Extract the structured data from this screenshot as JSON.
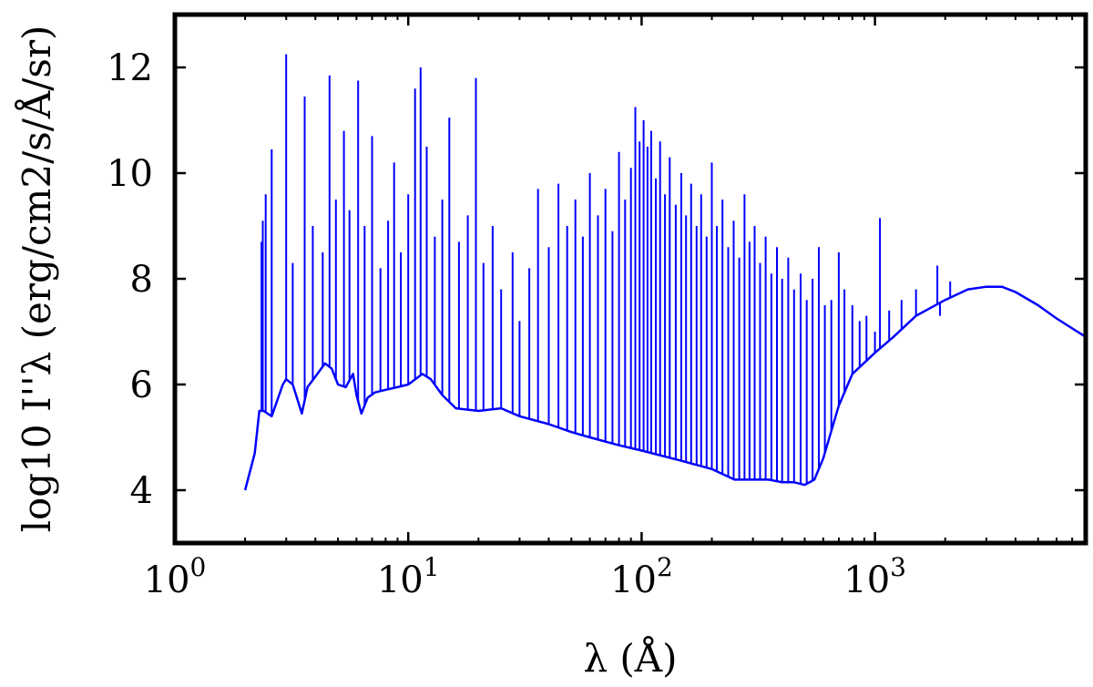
{
  "chart_data": {
    "type": "line",
    "xscale": "log",
    "xlim": [
      1,
      8000
    ],
    "ylim": [
      3,
      13
    ],
    "grid": false,
    "legend": "none",
    "color": "#0000ff",
    "xlabel": "λ (Å)",
    "ylabel": "log10 I''λ (erg/cm2/s/Å/sr)",
    "x_ticks": [
      {
        "base": "10",
        "exp": "0"
      },
      {
        "base": "10",
        "exp": "1"
      },
      {
        "base": "10",
        "exp": "2"
      },
      {
        "base": "10",
        "exp": "3"
      }
    ],
    "y_ticks": [
      "4",
      "6",
      "8",
      "10",
      "12"
    ],
    "continuum": {
      "x": [
        2.0,
        2.2,
        2.3,
        2.4,
        2.6,
        2.9,
        3.0,
        3.2,
        3.5,
        3.7,
        4.0,
        4.4,
        4.7,
        5.0,
        5.4,
        5.8,
        6.0,
        6.3,
        6.7,
        7.2,
        8.0,
        9.0,
        10.0,
        11.5,
        12.5,
        14.0,
        16.0,
        20.0,
        25.0,
        30.0,
        40.0,
        50.0,
        60.0,
        80.0,
        100.0,
        150.0,
        200.0,
        250.0,
        300.0,
        350.0,
        400.0,
        450.0,
        500.0,
        550.0,
        600.0,
        700.0,
        800.0,
        1000.0,
        1200.0,
        1500.0,
        2000.0,
        2500.0,
        3000.0,
        3500.0,
        4000.0,
        5000.0,
        6000.0,
        8000.0
      ],
      "y": [
        4.0,
        4.7,
        5.5,
        5.5,
        5.4,
        6.0,
        6.1,
        6.0,
        5.45,
        5.95,
        6.15,
        6.4,
        6.3,
        6.0,
        5.95,
        6.2,
        5.8,
        5.45,
        5.75,
        5.85,
        5.9,
        5.95,
        6.0,
        6.2,
        6.1,
        5.8,
        5.55,
        5.5,
        5.55,
        5.4,
        5.25,
        5.1,
        5.0,
        4.85,
        4.75,
        4.55,
        4.4,
        4.2,
        4.2,
        4.2,
        4.15,
        4.15,
        4.1,
        4.2,
        4.6,
        5.6,
        6.2,
        6.6,
        6.9,
        7.3,
        7.6,
        7.8,
        7.85,
        7.85,
        7.75,
        7.5,
        7.25,
        6.9
      ]
    },
    "lines": [
      {
        "x": 2.35,
        "y": 8.7
      },
      {
        "x": 2.38,
        "y": 9.1
      },
      {
        "x": 2.45,
        "y": 9.6
      },
      {
        "x": 2.6,
        "y": 10.45
      },
      {
        "x": 3.0,
        "y": 12.25
      },
      {
        "x": 3.2,
        "y": 8.3
      },
      {
        "x": 3.6,
        "y": 11.45
      },
      {
        "x": 3.9,
        "y": 9.0
      },
      {
        "x": 4.3,
        "y": 8.5
      },
      {
        "x": 4.6,
        "y": 11.85
      },
      {
        "x": 4.9,
        "y": 9.5
      },
      {
        "x": 5.3,
        "y": 10.8
      },
      {
        "x": 5.6,
        "y": 9.3
      },
      {
        "x": 6.1,
        "y": 11.75
      },
      {
        "x": 6.5,
        "y": 9.0
      },
      {
        "x": 7.0,
        "y": 10.7
      },
      {
        "x": 7.6,
        "y": 8.2
      },
      {
        "x": 8.2,
        "y": 9.1
      },
      {
        "x": 8.7,
        "y": 10.2
      },
      {
        "x": 9.3,
        "y": 8.5
      },
      {
        "x": 10.0,
        "y": 9.6
      },
      {
        "x": 10.7,
        "y": 11.6
      },
      {
        "x": 11.3,
        "y": 12.0
      },
      {
        "x": 12.0,
        "y": 10.5
      },
      {
        "x": 13.0,
        "y": 8.8
      },
      {
        "x": 14.0,
        "y": 9.5
      },
      {
        "x": 15.0,
        "y": 11.05
      },
      {
        "x": 16.5,
        "y": 8.7
      },
      {
        "x": 18.0,
        "y": 9.2
      },
      {
        "x": 19.5,
        "y": 11.8
      },
      {
        "x": 21.0,
        "y": 8.3
      },
      {
        "x": 23.0,
        "y": 9.0
      },
      {
        "x": 25.0,
        "y": 7.8
      },
      {
        "x": 28.0,
        "y": 8.5
      },
      {
        "x": 30.0,
        "y": 7.2
      },
      {
        "x": 33.0,
        "y": 8.2
      },
      {
        "x": 36.0,
        "y": 9.7
      },
      {
        "x": 40.0,
        "y": 8.6
      },
      {
        "x": 44.0,
        "y": 9.8
      },
      {
        "x": 48.0,
        "y": 9.0
      },
      {
        "x": 52.0,
        "y": 9.5
      },
      {
        "x": 56.0,
        "y": 8.8
      },
      {
        "x": 60.0,
        "y": 10.0
      },
      {
        "x": 65.0,
        "y": 9.2
      },
      {
        "x": 70.0,
        "y": 9.7
      },
      {
        "x": 75.0,
        "y": 8.9
      },
      {
        "x": 80.0,
        "y": 10.4
      },
      {
        "x": 85.0,
        "y": 9.5
      },
      {
        "x": 90.0,
        "y": 10.1
      },
      {
        "x": 94.0,
        "y": 11.25
      },
      {
        "x": 98.0,
        "y": 10.6
      },
      {
        "x": 102.0,
        "y": 11.0
      },
      {
        "x": 106.0,
        "y": 10.5
      },
      {
        "x": 110.0,
        "y": 10.8
      },
      {
        "x": 115.0,
        "y": 9.9
      },
      {
        "x": 120.0,
        "y": 10.6
      },
      {
        "x": 126.0,
        "y": 9.6
      },
      {
        "x": 132.0,
        "y": 10.3
      },
      {
        "x": 140.0,
        "y": 9.4
      },
      {
        "x": 148.0,
        "y": 10.0
      },
      {
        "x": 155.0,
        "y": 9.2
      },
      {
        "x": 163.0,
        "y": 9.8
      },
      {
        "x": 172.0,
        "y": 9.0
      },
      {
        "x": 180.0,
        "y": 9.6
      },
      {
        "x": 190.0,
        "y": 8.8
      },
      {
        "x": 200.0,
        "y": 10.2
      },
      {
        "x": 210.0,
        "y": 9.0
      },
      {
        "x": 222.0,
        "y": 9.5
      },
      {
        "x": 235.0,
        "y": 8.6
      },
      {
        "x": 248.0,
        "y": 9.1
      },
      {
        "x": 262.0,
        "y": 8.4
      },
      {
        "x": 276.0,
        "y": 9.6
      },
      {
        "x": 290.0,
        "y": 8.7
      },
      {
        "x": 305.0,
        "y": 9.0
      },
      {
        "x": 322.0,
        "y": 8.3
      },
      {
        "x": 340.0,
        "y": 8.8
      },
      {
        "x": 360.0,
        "y": 8.1
      },
      {
        "x": 380.0,
        "y": 8.6
      },
      {
        "x": 400.0,
        "y": 8.0
      },
      {
        "x": 425.0,
        "y": 8.4
      },
      {
        "x": 450.0,
        "y": 7.8
      },
      {
        "x": 480.0,
        "y": 8.1
      },
      {
        "x": 510.0,
        "y": 7.6
      },
      {
        "x": 540.0,
        "y": 8.0
      },
      {
        "x": 575.0,
        "y": 8.6
      },
      {
        "x": 610.0,
        "y": 7.5
      },
      {
        "x": 650.0,
        "y": 7.6
      },
      {
        "x": 700.0,
        "y": 8.5
      },
      {
        "x": 740.0,
        "y": 7.8
      },
      {
        "x": 800.0,
        "y": 7.5
      },
      {
        "x": 860.0,
        "y": 7.2
      },
      {
        "x": 920.0,
        "y": 7.3
      },
      {
        "x": 1000.0,
        "y": 7.0
      },
      {
        "x": 1050.0,
        "y": 9.15
      },
      {
        "x": 1150.0,
        "y": 7.4
      },
      {
        "x": 1300.0,
        "y": 7.6
      },
      {
        "x": 1500.0,
        "y": 7.8
      },
      {
        "x": 1850.0,
        "y": 8.25
      },
      {
        "x": 1900.0,
        "y": 7.3
      },
      {
        "x": 2100.0,
        "y": 7.95
      }
    ]
  }
}
